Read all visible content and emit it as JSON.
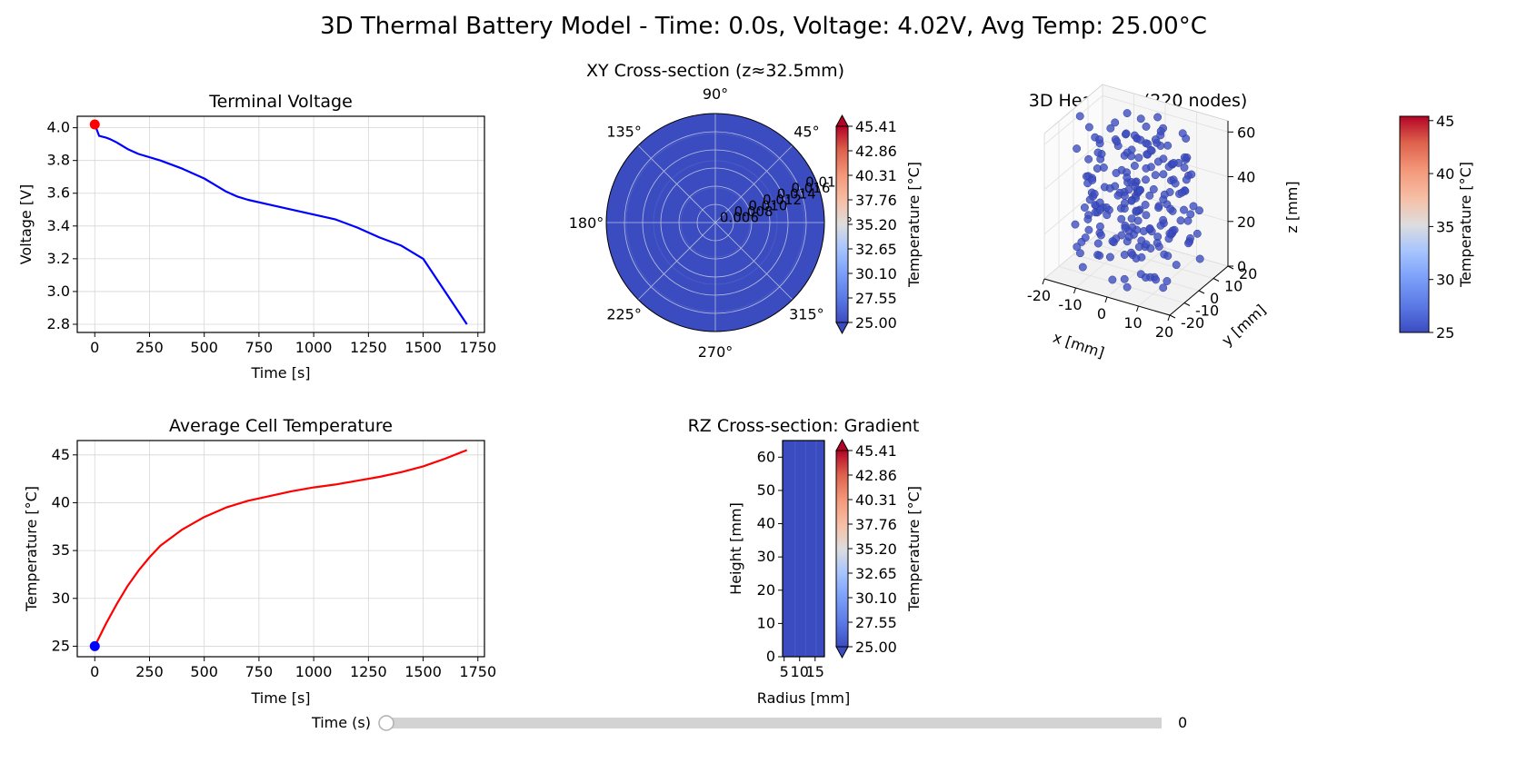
{
  "suptitle": "3D Thermal Battery Model - Time: 0.0s, Voltage: 4.02V, Avg Temp: 25.00°C",
  "colors": {
    "voltage_line": "#0000ff",
    "voltage_marker": "#ff0000",
    "temp_line": "#ff0000",
    "temp_marker": "#0000ff",
    "field": "#3b4cc0",
    "cmap_low": "#3b4cc0",
    "cmap_mid": "#dddddd",
    "cmap_high": "#b40426"
  },
  "chart_data": [
    {
      "id": "voltage",
      "type": "line",
      "title": "Terminal Voltage",
      "xlabel": "Time [s]",
      "ylabel": "Voltage [V]",
      "xlim": [
        -80,
        1780
      ],
      "ylim": [
        2.75,
        4.07
      ],
      "xticks": [
        0,
        250,
        500,
        750,
        1000,
        1250,
        1500,
        1750
      ],
      "yticks": [
        2.8,
        3.0,
        3.2,
        3.4,
        3.6,
        3.8,
        4.0
      ],
      "ytick_labels": [
        "2.8",
        "3.0",
        "3.2",
        "3.4",
        "3.6",
        "3.8",
        "4.0"
      ],
      "grid": true,
      "series": [
        {
          "x": [
            0,
            20,
            50,
            70,
            100,
            150,
            200,
            300,
            400,
            500,
            550,
            600,
            650,
            700,
            800,
            900,
            1000,
            1100,
            1200,
            1300,
            1400,
            1450,
            1500,
            1600,
            1700
          ],
          "y": [
            4.02,
            3.95,
            3.94,
            3.93,
            3.91,
            3.87,
            3.84,
            3.8,
            3.75,
            3.69,
            3.65,
            3.61,
            3.58,
            3.56,
            3.53,
            3.5,
            3.47,
            3.44,
            3.39,
            3.33,
            3.28,
            3.24,
            3.2,
            3.0,
            2.8
          ]
        }
      ],
      "marker": {
        "x": 0,
        "y": 4.02
      }
    },
    {
      "id": "temperature",
      "type": "line",
      "title": "Average Cell Temperature",
      "xlabel": "Time [s]",
      "ylabel": "Temperature [°C]",
      "xlim": [
        -80,
        1780
      ],
      "ylim": [
        23.9,
        46.5
      ],
      "xticks": [
        0,
        250,
        500,
        750,
        1000,
        1250,
        1500,
        1750
      ],
      "yticks": [
        25,
        30,
        35,
        40,
        45
      ],
      "ytick_labels": [
        "25",
        "30",
        "35",
        "40",
        "45"
      ],
      "grid": true,
      "series": [
        {
          "x": [
            0,
            50,
            100,
            150,
            200,
            250,
            300,
            400,
            500,
            600,
            700,
            800,
            900,
            1000,
            1100,
            1200,
            1300,
            1400,
            1500,
            1600,
            1700
          ],
          "y": [
            25.0,
            27.3,
            29.4,
            31.3,
            32.9,
            34.3,
            35.5,
            37.2,
            38.5,
            39.5,
            40.2,
            40.7,
            41.2,
            41.6,
            41.9,
            42.3,
            42.7,
            43.2,
            43.8,
            44.6,
            45.5
          ]
        }
      ],
      "marker": {
        "x": 0,
        "y": 25.0
      }
    },
    {
      "id": "xy-section",
      "type": "heatmap",
      "projection": "polar",
      "title": "XY Cross-section (z≈32.5mm)",
      "angle_labels": [
        "0°",
        "45°",
        "90°",
        "135°",
        "180°",
        "225°",
        "270°",
        "315°"
      ],
      "radial_tick_labels": [
        "0.006",
        "0.008",
        "0.010",
        "0.012",
        "0.014",
        "0.016",
        "0.018"
      ],
      "temperature": 25.0
    },
    {
      "id": "xy-colorbar",
      "type": "colorbar",
      "label": "Temperature [°C]",
      "range": [
        25.0,
        45.41
      ],
      "ticks": [
        "45.41",
        "42.86",
        "40.31",
        "37.76",
        "35.20",
        "32.65",
        "30.10",
        "27.55",
        "25.00"
      ],
      "extend": "both"
    },
    {
      "id": "rz-section",
      "type": "heatmap",
      "title": "RZ Cross-section: Gradient",
      "xlabel": "Radius [mm]",
      "ylabel": "Height [mm]",
      "xlim": [
        4.5,
        18
      ],
      "ylim": [
        0,
        65
      ],
      "xticks": [
        5,
        10,
        15
      ],
      "yticks": [
        0,
        10,
        20,
        30,
        40,
        50,
        60
      ],
      "temperature": 25.0
    },
    {
      "id": "rz-colorbar",
      "type": "colorbar",
      "label": "Temperature [°C]",
      "range": [
        25.0,
        45.41
      ],
      "ticks": [
        "45.41",
        "42.86",
        "40.31",
        "37.76",
        "35.20",
        "32.65",
        "30.10",
        "27.55",
        "25.00"
      ],
      "extend": "both"
    },
    {
      "id": "heatmap-3d",
      "type": "scatter",
      "projection": "3d",
      "title": "3D Heatmap (220 nodes)",
      "xlabel": "x [mm]",
      "ylabel": "y [mm]",
      "zlabel": "z [mm]",
      "xticks": [
        -20,
        -10,
        0,
        10,
        20
      ],
      "yticks": [
        -20,
        -10,
        0,
        10,
        20
      ],
      "zticks": [
        0,
        20,
        40,
        60
      ],
      "xlim": [
        -20,
        20
      ],
      "ylim": [
        -20,
        20
      ],
      "zlim": [
        0,
        65
      ],
      "node_count": 220,
      "temperature": 25.0
    },
    {
      "id": "heatmap-3d-colorbar",
      "type": "colorbar",
      "label": "Temperature [°C]",
      "range": [
        25,
        45.41
      ],
      "ticks": [
        "45",
        "40",
        "35",
        "30",
        "25"
      ],
      "tick_values": [
        45,
        40,
        35,
        30,
        25
      ],
      "extend": "none"
    }
  ],
  "slider": {
    "label": "Time (s)",
    "value": "0",
    "fraction": 0
  }
}
